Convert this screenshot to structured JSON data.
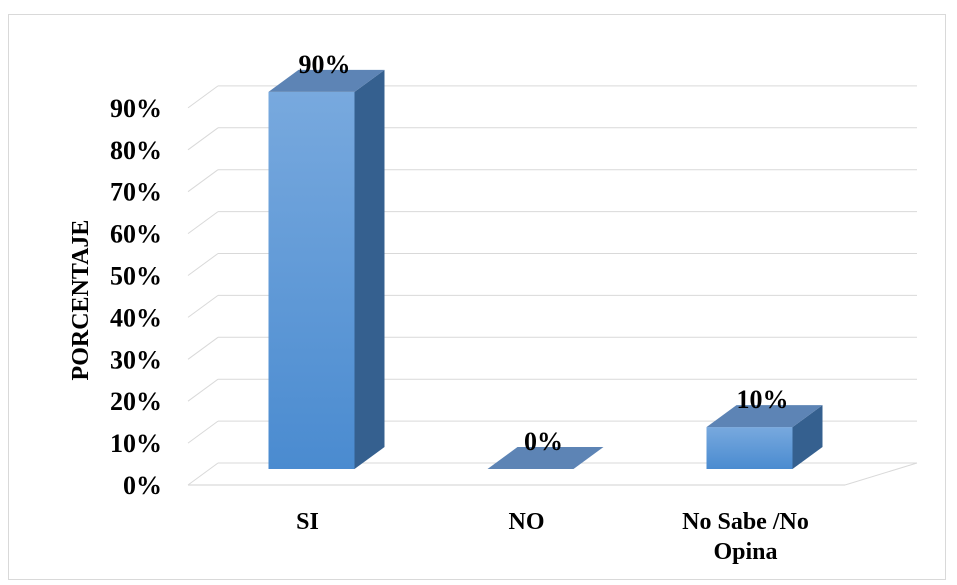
{
  "chart_data": {
    "type": "bar",
    "title": "",
    "xlabel": "",
    "ylabel": "PORCENTAJE",
    "categories": [
      "SI",
      "NO",
      "No Sabe /No Opina"
    ],
    "category_lines": [
      [
        "SI"
      ],
      [
        "NO"
      ],
      [
        "No Sabe /No",
        "Opina"
      ]
    ],
    "values": [
      90,
      0,
      10
    ],
    "data_labels": [
      "90%",
      "0%",
      "10%"
    ],
    "ylim": [
      0,
      90
    ],
    "yticks": [
      0,
      10,
      20,
      30,
      40,
      50,
      60,
      70,
      80,
      90
    ],
    "ytick_labels": [
      "0%",
      "10%",
      "20%",
      "30%",
      "40%",
      "50%",
      "60%",
      "70%",
      "80%",
      "90%"
    ],
    "grid": true,
    "legend": "none",
    "style": "3d-column",
    "colors": {
      "bar_front_top": "#78a9de",
      "bar_front_bottom": "#4a8bd0",
      "bar_side": "#35608f",
      "bar_top": "#5d84b5",
      "gridline": "#d9d9d9"
    }
  }
}
